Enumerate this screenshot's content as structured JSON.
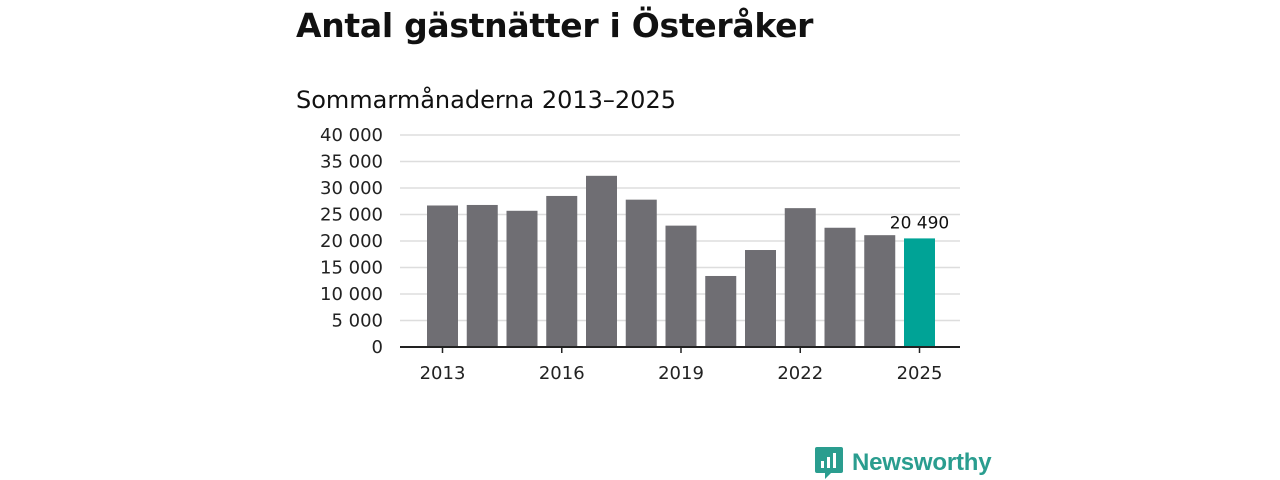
{
  "header": {
    "title": "Antal gästnätter i Österåker",
    "subtitle": "Sommarmånaderna 2013–2025"
  },
  "brand": {
    "name": "Newsworthy",
    "color": "#2a9d8f",
    "icon": "newsworthy-logo-icon"
  },
  "colors": {
    "bar": "#6f6e73",
    "highlight": "#00a396",
    "grid": "#dddddd",
    "axis": "#222222"
  },
  "chart_data": {
    "type": "bar",
    "title": "Antal gästnätter i Österåker",
    "subtitle": "Sommarmånaderna 2013–2025",
    "categories": [
      "2013",
      "2014",
      "2015",
      "2016",
      "2017",
      "2018",
      "2019",
      "2020",
      "2021",
      "2022",
      "2023",
      "2024",
      "2025"
    ],
    "values": [
      26700,
      26800,
      25700,
      28500,
      32300,
      27800,
      22900,
      13400,
      18300,
      26200,
      22500,
      21100,
      20490
    ],
    "ylim": [
      0,
      40000
    ],
    "yticks": [
      0,
      5000,
      10000,
      15000,
      20000,
      25000,
      30000,
      35000,
      40000
    ],
    "ytick_labels": [
      "0",
      "5 000",
      "10 000",
      "15 000",
      "20 000",
      "25 000",
      "30 000",
      "35 000",
      "40 000"
    ],
    "xtick_labels": [
      "2013",
      "2016",
      "2019",
      "2022",
      "2025"
    ],
    "highlight_index": 12,
    "highlight_label": "20 490",
    "grid": true,
    "legend": "none"
  }
}
